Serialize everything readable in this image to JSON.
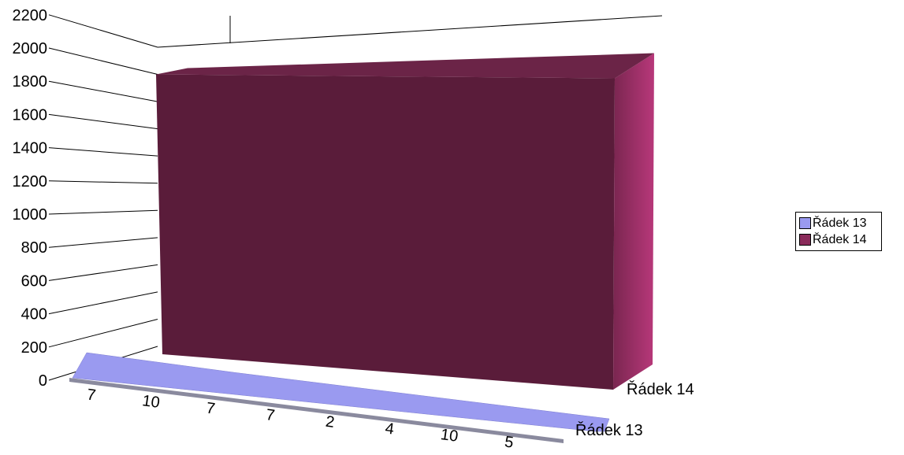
{
  "chart_data": {
    "type": "area",
    "subtype": "3d-area",
    "title": "",
    "xlabel": "",
    "ylabel": "",
    "ylim": [
      0,
      2200
    ],
    "yticks": [
      "0",
      "200",
      "400",
      "600",
      "800",
      "1000",
      "1200",
      "1400",
      "1600",
      "1800",
      "2000",
      "2200"
    ],
    "categories": [
      "7",
      "10",
      "7",
      "7",
      "2",
      "4",
      "10",
      "5"
    ],
    "series": [
      {
        "name": "Řádek 13",
        "values": [
          20,
          17,
          14,
          12,
          10,
          8,
          6,
          4
        ],
        "color": "#9a9af0"
      },
      {
        "name": "Řádek 14",
        "values": [
          2000,
          2000,
          2000,
          2000,
          2000,
          2000,
          2000,
          2000
        ],
        "color": "#5a1c3a"
      }
    ],
    "depth_labels": [
      "Řádek 14",
      "Řádek 13"
    ],
    "grid": false,
    "legend_position": "right"
  },
  "legend": {
    "items": [
      {
        "label": "Řádek 13",
        "color": "#9a9af0"
      },
      {
        "label": "Řádek 14",
        "color": "#8a2a5a"
      }
    ]
  }
}
